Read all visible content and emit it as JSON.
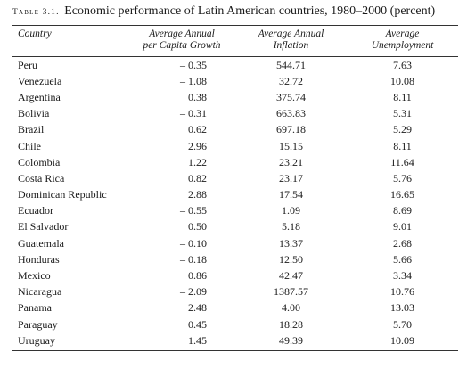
{
  "caption": {
    "label": "Table 3.1.",
    "title": "Economic performance of Latin American countries, 1980–2000 (percent)"
  },
  "headers": {
    "country": "Country",
    "growth_line1": "Average Annual",
    "growth_line2": "per Capita Growth",
    "inflation_line1": "Average Annual",
    "inflation_line2": "Inflation",
    "unemp_line1": "Average",
    "unemp_line2": "Unemployment"
  },
  "rows": [
    {
      "country": "Peru",
      "growth": "– 0.35",
      "inflation": "544.71",
      "unemployment": "7.63"
    },
    {
      "country": "Venezuela",
      "growth": "– 1.08",
      "inflation": "32.72",
      "unemployment": "10.08"
    },
    {
      "country": "Argentina",
      "growth": "0.38",
      "inflation": "375.74",
      "unemployment": "8.11"
    },
    {
      "country": "Bolivia",
      "growth": "– 0.31",
      "inflation": "663.83",
      "unemployment": "5.31"
    },
    {
      "country": "Brazil",
      "growth": "0.62",
      "inflation": "697.18",
      "unemployment": "5.29"
    },
    {
      "country": "Chile",
      "growth": "2.96",
      "inflation": "15.15",
      "unemployment": "8.11"
    },
    {
      "country": "Colombia",
      "growth": "1.22",
      "inflation": "23.21",
      "unemployment": "11.64"
    },
    {
      "country": "Costa Rica",
      "growth": "0.82",
      "inflation": "23.17",
      "unemployment": "5.76"
    },
    {
      "country": "Dominican Republic",
      "growth": "2.88",
      "inflation": "17.54",
      "unemployment": "16.65"
    },
    {
      "country": "Ecuador",
      "growth": "– 0.55",
      "inflation": "1.09",
      "unemployment": "8.69"
    },
    {
      "country": "El Salvador",
      "growth": "0.50",
      "inflation": "5.18",
      "unemployment": "9.01"
    },
    {
      "country": "Guatemala",
      "growth": "– 0.10",
      "inflation": "13.37",
      "unemployment": "2.68"
    },
    {
      "country": "Honduras",
      "growth": "– 0.18",
      "inflation": "12.50",
      "unemployment": "5.66"
    },
    {
      "country": "Mexico",
      "growth": "0.86",
      "inflation": "42.47",
      "unemployment": "3.34"
    },
    {
      "country": "Nicaragua",
      "growth": "– 2.09",
      "inflation": "1387.57",
      "unemployment": "10.76"
    },
    {
      "country": "Panama",
      "growth": "2.48",
      "inflation": "4.00",
      "unemployment": "13.03"
    },
    {
      "country": "Paraguay",
      "growth": "0.45",
      "inflation": "18.28",
      "unemployment": "5.70"
    },
    {
      "country": "Uruguay",
      "growth": "1.45",
      "inflation": "49.39",
      "unemployment": "10.09"
    }
  ]
}
